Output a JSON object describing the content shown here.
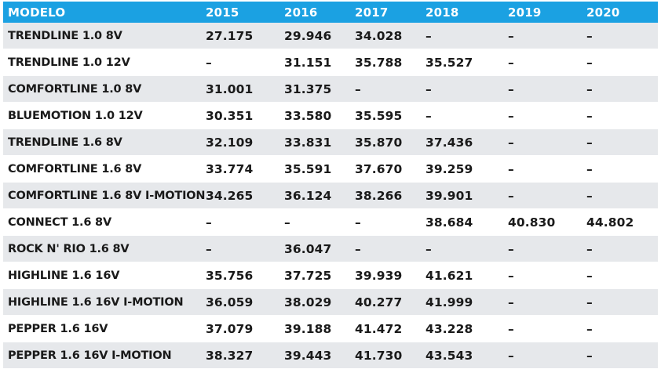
{
  "table": {
    "headers": [
      "MODELO",
      "2015",
      "2016",
      "2017",
      "2018",
      "2019",
      "2020"
    ],
    "rows": [
      [
        "TRENDLINE 1.0 8V",
        "27.175",
        "29.946",
        "34.028",
        "–",
        "–",
        "–"
      ],
      [
        "TRENDLINE 1.0 12V",
        "–",
        "31.151",
        "35.788",
        "35.527",
        "–",
        "–"
      ],
      [
        "COMFORTLINE 1.0 8V",
        "31.001",
        "31.375",
        "–",
        "–",
        "–",
        "–"
      ],
      [
        "BLUEMOTION 1.0 12V",
        "30.351",
        "33.580",
        "35.595",
        "–",
        "–",
        "–"
      ],
      [
        "TRENDLINE 1.6 8V",
        "32.109",
        "33.831",
        "35.870",
        "37.436",
        "–",
        "–"
      ],
      [
        "COMFORTLINE 1.6 8V",
        "33.774",
        "35.591",
        "37.670",
        "39.259",
        "–",
        "–"
      ],
      [
        "COMFORTLINE 1.6 8V I-MOTION",
        "34.265",
        "36.124",
        "38.266",
        "39.901",
        "–",
        "–"
      ],
      [
        "CONNECT 1.6 8V",
        "–",
        "–",
        "–",
        "38.684",
        "40.830",
        "44.802"
      ],
      [
        "ROCK N' RIO 1.6 8V",
        "–",
        "36.047",
        "–",
        "–",
        "–",
        "–"
      ],
      [
        "HIGHLINE 1.6 16V",
        "35.756",
        "37.725",
        "39.939",
        "41.621",
        "–",
        "–"
      ],
      [
        "HIGHLINE 1.6 16V I-MOTION",
        "36.059",
        "38.029",
        "40.277",
        "41.999",
        "–",
        "–"
      ],
      [
        "PEPPER 1.6 16V",
        "37.079",
        "39.188",
        "41.472",
        "43.228",
        "–",
        "–"
      ],
      [
        "PEPPER 1.6 16V I-MOTION",
        "38.327",
        "39.443",
        "41.730",
        "43.543",
        "–",
        "–"
      ]
    ]
  },
  "colors": {
    "header_bg": "#1ba1e2",
    "header_text": "#ffffff",
    "stripe": "#e6e8eb",
    "text": "#1a1a1a"
  }
}
